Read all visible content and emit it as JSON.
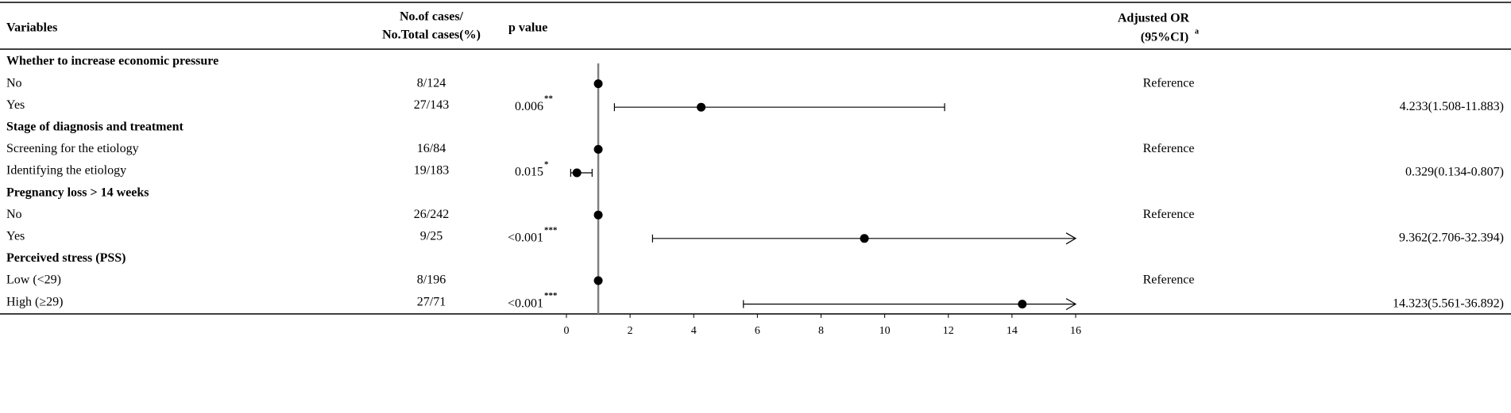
{
  "chart_data": {
    "type": "forest",
    "headers": {
      "variables": "Variables",
      "cases": [
        "No.of cases/",
        "No.Total cases(%)"
      ],
      "p": "p value",
      "or": [
        "Adjusted OR",
        "(95%CI)"
      ],
      "or_sup": "a"
    },
    "ref_value": 1,
    "xlim": [
      0,
      16
    ],
    "xticks": [
      0,
      2,
      4,
      6,
      8,
      10,
      12,
      14,
      16
    ],
    "point_color": "#000000",
    "ref_line_color": "#808080",
    "groups": [
      {
        "title": "Whether to increase economic pressure",
        "rows": [
          {
            "label": "No",
            "cases": "8/124",
            "or": 1,
            "reference": "Reference"
          },
          {
            "label": "Yes",
            "cases": "27/143",
            "p": "0.006",
            "p_sig": "**",
            "or": 4.233,
            "lo": 1.508,
            "hi": 11.883,
            "or_label": "4.233(1.508-11.883)"
          }
        ]
      },
      {
        "title": "Stage of diagnosis and treatment",
        "rows": [
          {
            "label": "Screening for the etiology",
            "cases": "16/84",
            "or": 1,
            "reference": "Reference"
          },
          {
            "label": "Identifying the etiology",
            "cases": "19/183",
            "p": "0.015",
            "p_sig": "*",
            "or": 0.329,
            "lo": 0.134,
            "hi": 0.807,
            "or_label": "0.329(0.134-0.807)"
          }
        ]
      },
      {
        "title": "Pregnancy loss > 14 weeks",
        "rows": [
          {
            "label": "No",
            "cases": "26/242",
            "or": 1,
            "reference": "Reference"
          },
          {
            "label": "Yes",
            "cases": "9/25",
            "p": "<0.001",
            "p_sig": "***",
            "or": 9.362,
            "lo": 2.706,
            "hi": 32.394,
            "or_label": "9.362(2.706-32.394)"
          }
        ]
      },
      {
        "title": "Perceived stress (PSS)",
        "rows": [
          {
            "label": "Low (<29)",
            "cases": "8/196",
            "or": 1,
            "reference": "Reference"
          },
          {
            "label": "High (≥29)",
            "cases": "27/71",
            "p": "<0.001",
            "p_sig": "***",
            "or": 14.323,
            "lo": 5.561,
            "hi": 36.892,
            "or_label": "14.323(5.561-36.892)"
          }
        ]
      }
    ]
  }
}
